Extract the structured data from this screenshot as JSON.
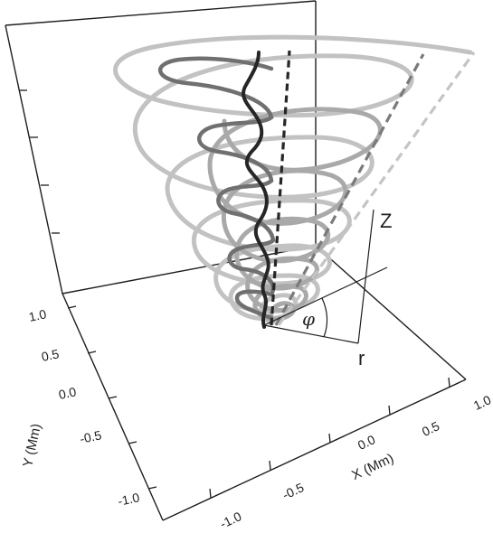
{
  "axes": {
    "x_label": "X (Mm)",
    "y_label": "Y (Mm)",
    "x_ticks": [
      "-1.0",
      "-0.5",
      "0.0",
      "0.5",
      "1.0"
    ],
    "y_ticks": [
      "-1.0",
      "-0.5",
      "0.0",
      "0.5",
      "1.0"
    ]
  },
  "inset": {
    "z_label": "Z",
    "r_label": "r",
    "phi_label": "φ"
  },
  "colors": {
    "axis": "#1e1e1e",
    "darkest_curve": "#262626",
    "dark_curve": "#707070",
    "mid_curve": "#a9a9a9",
    "light_curve": "#c2c2c2"
  }
}
